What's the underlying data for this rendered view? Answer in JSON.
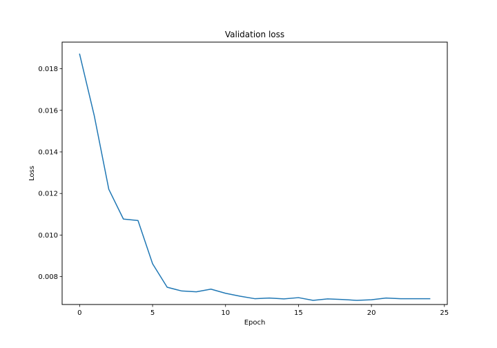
{
  "chart_data": {
    "type": "line",
    "title": "Validation loss",
    "xlabel": "Epoch",
    "ylabel": "Loss",
    "xlim": [
      -1.2,
      25.2
    ],
    "ylim": [
      0.00666,
      0.01928
    ],
    "x_ticks": [
      0,
      5,
      10,
      15,
      20,
      25
    ],
    "x_tick_labels": [
      "0",
      "5",
      "10",
      "15",
      "20",
      "25"
    ],
    "y_ticks": [
      0.008,
      0.01,
      0.012,
      0.014,
      0.016,
      0.018
    ],
    "y_tick_labels": [
      "0.008",
      "0.010",
      "0.012",
      "0.014",
      "0.016",
      "0.018"
    ],
    "grid": false,
    "legend": "none",
    "line_color": "#1f77b4",
    "x": [
      0,
      1,
      2,
      3,
      4,
      5,
      6,
      7,
      8,
      9,
      10,
      11,
      12,
      13,
      14,
      15,
      16,
      17,
      18,
      19,
      20,
      21,
      22,
      23,
      24
    ],
    "values": [
      0.0187,
      0.01575,
      0.0122,
      0.01077,
      0.0107,
      0.00862,
      0.00749,
      0.00731,
      0.00727,
      0.0074,
      0.0072,
      0.00706,
      0.00694,
      0.00697,
      0.00693,
      0.00699,
      0.00686,
      0.00693,
      0.0069,
      0.00686,
      0.00689,
      0.00697,
      0.00694,
      0.00694,
      0.00694
    ]
  }
}
